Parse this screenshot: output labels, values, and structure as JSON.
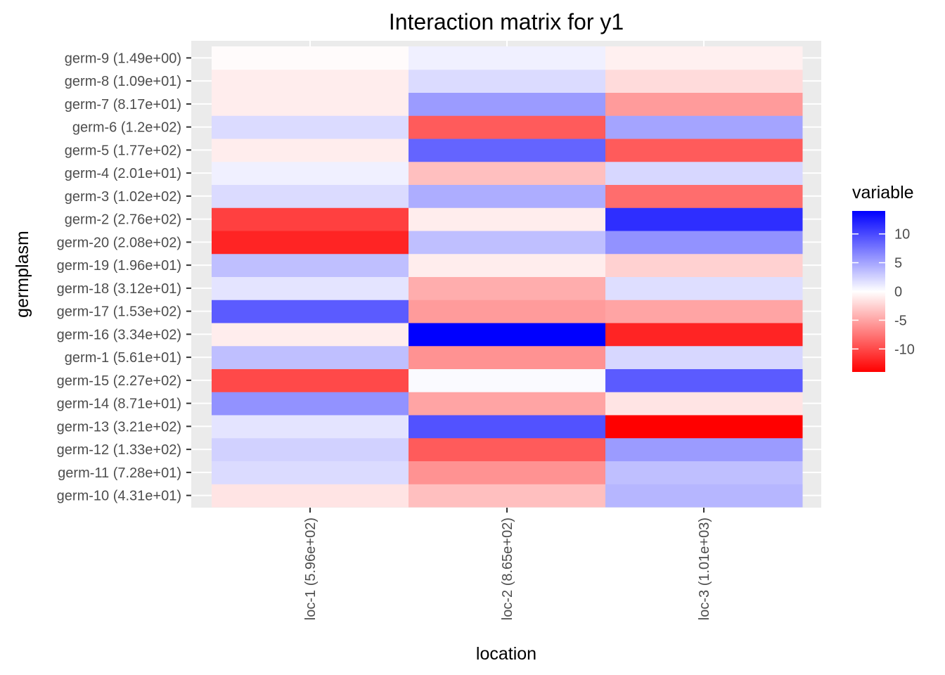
{
  "chart_data": {
    "type": "heatmap",
    "title": "Interaction matrix for y1",
    "xlabel": "location",
    "ylabel": "germplasm",
    "x_categories": [
      "loc-1 (5.96e+02)",
      "loc-2 (8.65e+02)",
      "loc-3 (1.01e+03)"
    ],
    "y_categories": [
      "germ-10 (4.31e+01)",
      "germ-11 (7.28e+01)",
      "germ-12 (1.33e+02)",
      "germ-13 (3.21e+02)",
      "germ-14 (8.71e+01)",
      "germ-15 (2.27e+02)",
      "germ-1 (5.61e+01)",
      "germ-16 (3.34e+02)",
      "germ-17 (1.53e+02)",
      "germ-18 (3.12e+01)",
      "germ-19 (1.96e+01)",
      "germ-20 (2.08e+02)",
      "germ-2 (2.76e+02)",
      "germ-3 (1.02e+02)",
      "germ-4 (2.01e+01)",
      "germ-5 (1.77e+02)",
      "germ-6 (1.2e+02)",
      "germ-7 (8.17e+01)",
      "germ-8 (1.09e+01)",
      "germ-9 (1.49e+00)"
    ],
    "values": [
      [
        -1.5,
        -3.5,
        4
      ],
      [
        2,
        -6,
        3.5
      ],
      [
        2.5,
        -9,
        5.5
      ],
      [
        1.5,
        9.5,
        -14
      ],
      [
        6,
        -5,
        -1.5
      ],
      [
        -10,
        0.3,
        9
      ],
      [
        3.5,
        -6,
        2.2
      ],
      [
        -1,
        14,
        -12
      ],
      [
        9,
        -5.5,
        -5
      ],
      [
        1.5,
        -4.5,
        1.8
      ],
      [
        3.5,
        -1,
        -2.5
      ],
      [
        -12,
        3.5,
        6
      ],
      [
        -10.5,
        -1,
        11.5
      ],
      [
        2,
        4.5,
        -8
      ],
      [
        0.8,
        -3.5,
        2.2
      ],
      [
        -1,
        8.5,
        -9
      ],
      [
        2,
        -9,
        5
      ],
      [
        -1,
        5.5,
        -5.5
      ],
      [
        -1,
        2,
        -2
      ],
      [
        -0.2,
        0.8,
        -0.8
      ]
    ],
    "color_scale": {
      "low": "#FF0000",
      "mid": "#FFFFFF",
      "high": "#0000FF",
      "min": -14,
      "max": 14
    },
    "legend": {
      "title": "variable",
      "position": "right",
      "breaks": [
        10,
        5,
        0,
        -5,
        -10
      ],
      "break_labels": [
        "10",
        "5",
        "0",
        "-5",
        "-10"
      ]
    },
    "panel_background": "#EBEBEB",
    "grid": true
  }
}
